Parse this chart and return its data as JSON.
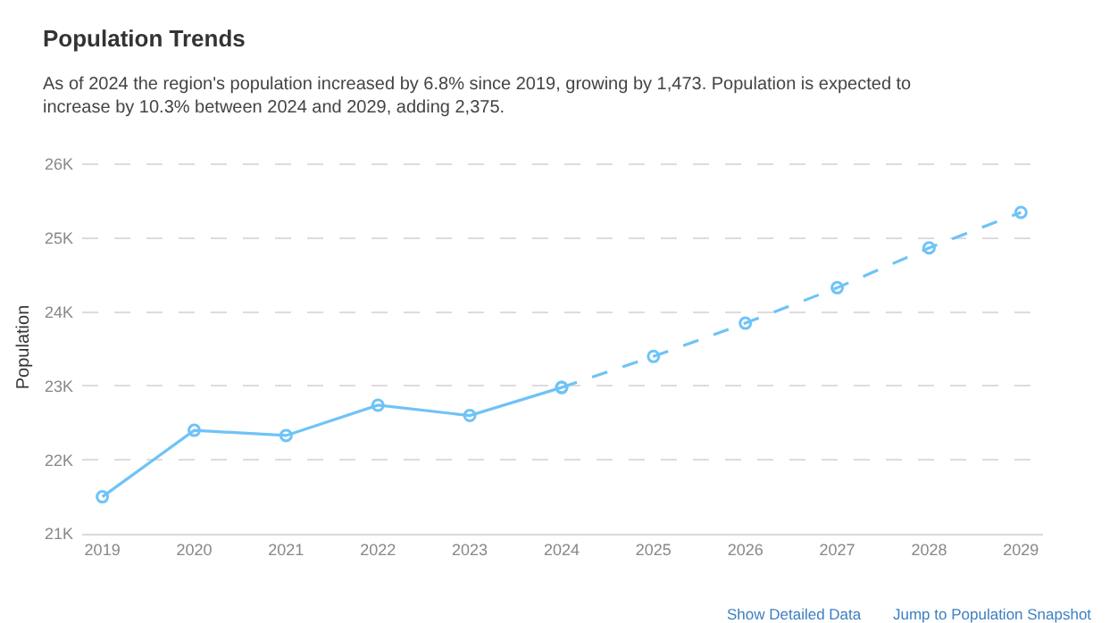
{
  "chart_data": {
    "type": "line",
    "title": "Population Trends",
    "subtitle": "As of 2024 the region's population increased by 6.8% since 2019, growing by 1,473. Population is expected to increase by 10.3% between 2024 and 2029, adding 2,375.",
    "ylabel": "Population",
    "series": [
      {
        "color": "#6ec3f7",
        "line_style": "solid",
        "x": [
          2019,
          2020,
          2021,
          2022,
          2023,
          2024
        ],
        "values": [
          21500,
          22400,
          22330,
          22740,
          22600,
          22980
        ]
      },
      {
        "color": "#6ec3f7",
        "line_style": "dashed",
        "x": [
          2024,
          2025,
          2026,
          2027,
          2028,
          2029
        ],
        "values": [
          22980,
          23400,
          23850,
          24330,
          24870,
          25350
        ]
      }
    ],
    "marker": "circle",
    "xlim": [
      2018.78,
      2029.24
    ],
    "xticks": [
      2019,
      2020,
      2021,
      2022,
      2023,
      2024,
      2025,
      2026,
      2027,
      2028,
      2029
    ],
    "ylim": [
      21000,
      26050
    ],
    "yticks": [
      {
        "value": 21000,
        "label": "21K"
      },
      {
        "value": 22000,
        "label": "22K"
      },
      {
        "value": 23000,
        "label": "23K"
      },
      {
        "value": 24000,
        "label": "24K"
      },
      {
        "value": 25000,
        "label": "25K"
      },
      {
        "value": 26000,
        "label": "26K"
      }
    ],
    "grid": "y",
    "annotations": [
      "Show Detailed Data",
      "Jump to Population Snapshot"
    ]
  }
}
